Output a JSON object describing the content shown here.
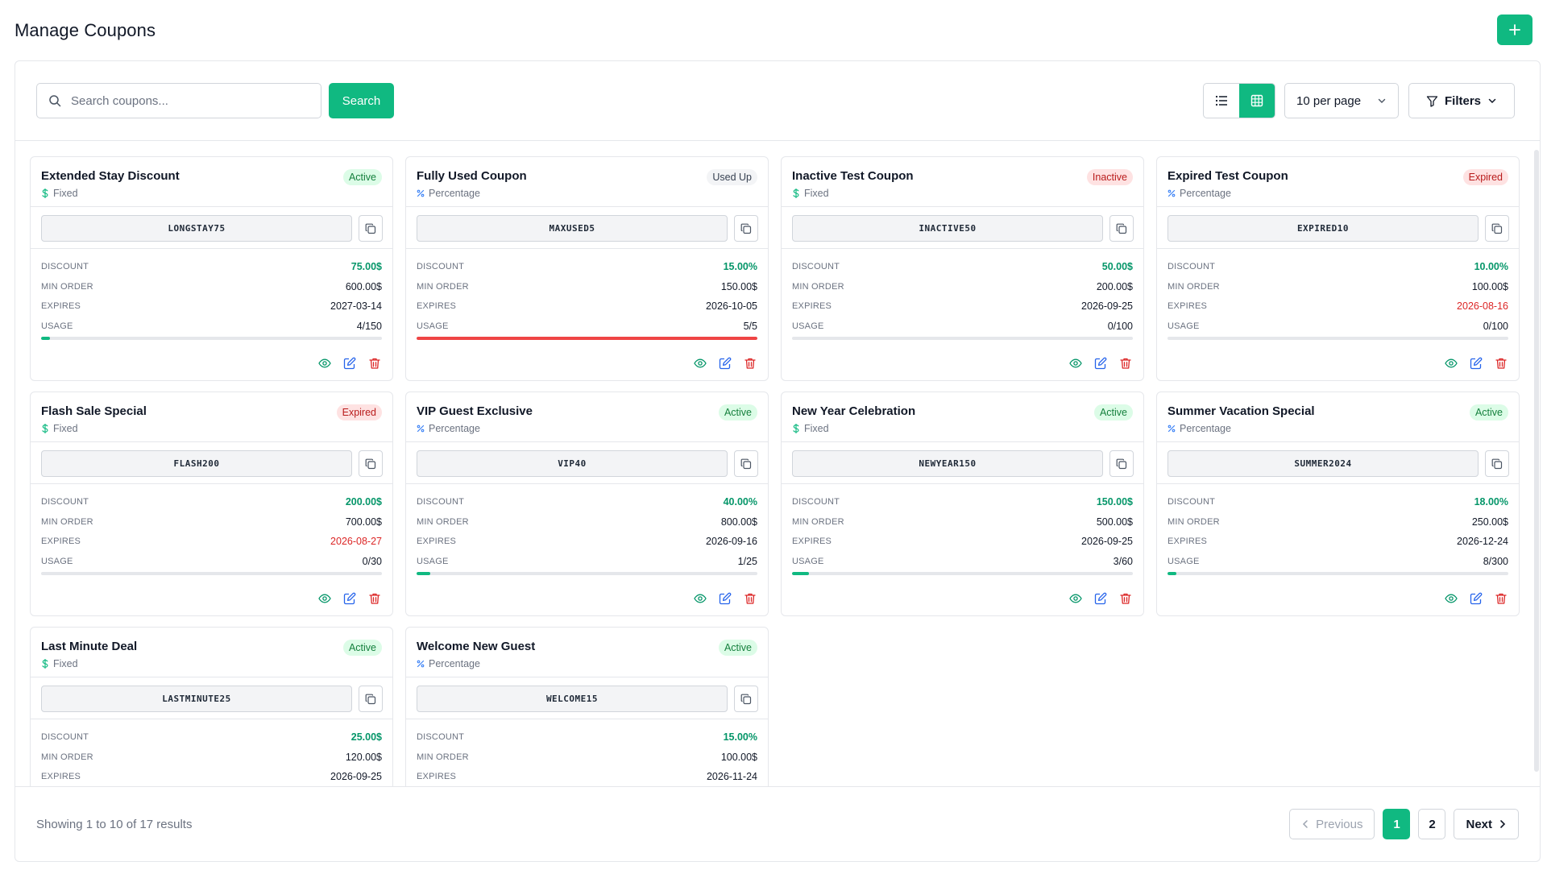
{
  "page": {
    "title": "Manage Coupons"
  },
  "toolbar": {
    "search_placeholder": "Search coupons...",
    "search_label": "Search",
    "per_page": "10 per page",
    "filters_label": "Filters"
  },
  "labels": {
    "discount": "DISCOUNT",
    "min_order": "MIN ORDER",
    "expires": "EXPIRES",
    "usage": "USAGE"
  },
  "colors": {
    "accent": "#10b981",
    "danger": "#ef4444",
    "info": "#2563eb"
  },
  "coupons": [
    {
      "title": "Extended Stay Discount",
      "type": "Fixed",
      "type_icon": "dollar-icon",
      "status": "Active",
      "code": "LONGSTAY75",
      "discount": "75.00$",
      "min_order": "600.00$",
      "expires": "2027-03-14",
      "expired_date": false,
      "usage": "4/150",
      "usage_fraction": 0.027
    },
    {
      "title": "Fully Used Coupon",
      "type": "Percentage",
      "type_icon": "percent-icon",
      "status": "Used Up",
      "code": "MAXUSED5",
      "discount": "15.00%",
      "min_order": "150.00$",
      "expires": "2026-10-05",
      "expired_date": false,
      "usage": "5/5",
      "usage_fraction": 1.0
    },
    {
      "title": "Inactive Test Coupon",
      "type": "Fixed",
      "type_icon": "dollar-icon",
      "status": "Inactive",
      "code": "INACTIVE50",
      "discount": "50.00$",
      "min_order": "200.00$",
      "expires": "2026-09-25",
      "expired_date": false,
      "usage": "0/100",
      "usage_fraction": 0.0
    },
    {
      "title": "Expired Test Coupon",
      "type": "Percentage",
      "type_icon": "percent-icon",
      "status": "Expired",
      "code": "EXPIRED10",
      "discount": "10.00%",
      "min_order": "100.00$",
      "expires": "2026-08-16",
      "expired_date": true,
      "usage": "0/100",
      "usage_fraction": 0.0
    },
    {
      "title": "Flash Sale Special",
      "type": "Fixed",
      "type_icon": "dollar-icon",
      "status": "Expired",
      "code": "FLASH200",
      "discount": "200.00$",
      "min_order": "700.00$",
      "expires": "2026-08-27",
      "expired_date": true,
      "usage": "0/30",
      "usage_fraction": 0.0
    },
    {
      "title": "VIP Guest Exclusive",
      "type": "Percentage",
      "type_icon": "percent-icon",
      "status": "Active",
      "code": "VIP40",
      "discount": "40.00%",
      "min_order": "800.00$",
      "expires": "2026-09-16",
      "expired_date": false,
      "usage": "1/25",
      "usage_fraction": 0.04
    },
    {
      "title": "New Year Celebration",
      "type": "Fixed",
      "type_icon": "dollar-icon",
      "status": "Active",
      "code": "NEWYEAR150",
      "discount": "150.00$",
      "min_order": "500.00$",
      "expires": "2026-09-25",
      "expired_date": false,
      "usage": "3/60",
      "usage_fraction": 0.05
    },
    {
      "title": "Summer Vacation Special",
      "type": "Percentage",
      "type_icon": "percent-icon",
      "status": "Active",
      "code": "SUMMER2024",
      "discount": "18.00%",
      "min_order": "250.00$",
      "expires": "2026-12-24",
      "expired_date": false,
      "usage": "8/300",
      "usage_fraction": 0.027
    },
    {
      "title": "Last Minute Deal",
      "type": "Fixed",
      "type_icon": "dollar-icon",
      "status": "Active",
      "code": "LASTMINUTE25",
      "discount": "25.00$",
      "min_order": "120.00$",
      "expires": "2026-09-25",
      "expired_date": false
    },
    {
      "title": "Welcome New Guest",
      "type": "Percentage",
      "type_icon": "percent-icon",
      "status": "Active",
      "code": "WELCOME15",
      "discount": "15.00%",
      "min_order": "100.00$",
      "expires": "2026-11-24",
      "expired_date": false
    }
  ],
  "footer": {
    "summary": "Showing 1 to 10 of 17 results",
    "previous": "Previous",
    "next": "Next",
    "pages": [
      "1",
      "2"
    ],
    "current_page": "1"
  }
}
